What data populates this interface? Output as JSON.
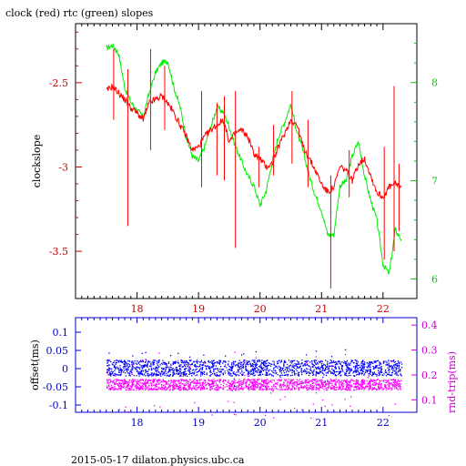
{
  "figure": {
    "footer": "2015-05-17 dilaton.physics.ubc.ca"
  },
  "chart_data": [
    {
      "type": "line",
      "title": "clock (red) rtc (green) slopes",
      "ylabel": "clockslope",
      "y2label": "",
      "x_ticks": [
        "18",
        "19",
        "20",
        "21",
        "22"
      ],
      "xlim": [
        17.0,
        22.55
      ],
      "ylim": [
        -3.78,
        -2.15
      ],
      "y2lim": [
        5.8,
        8.6
      ],
      "y_ticks": [
        "-2.5",
        "-3",
        "-3.5"
      ],
      "y2_ticks": [
        "6",
        "7",
        "8"
      ],
      "series": [
        {
          "color": "#ff0000",
          "axis": "left",
          "x": [
            17.5,
            17.6,
            17.7,
            17.8,
            17.9,
            18.0,
            18.1,
            18.2,
            18.3,
            18.4,
            18.5,
            18.6,
            18.7,
            18.8,
            18.9,
            19.0,
            19.1,
            19.2,
            19.3,
            19.4,
            19.5,
            19.6,
            19.7,
            19.8,
            19.9,
            20.0,
            20.1,
            20.2,
            20.3,
            20.4,
            20.5,
            20.6,
            20.7,
            20.8,
            20.9,
            21.0,
            21.1,
            21.2,
            21.3,
            21.4,
            21.5,
            21.6,
            21.7,
            21.8,
            21.9,
            22.0,
            22.1,
            22.2,
            22.3
          ],
          "y": [
            -2.55,
            -2.52,
            -2.56,
            -2.6,
            -2.65,
            -2.68,
            -2.72,
            -2.62,
            -2.6,
            -2.58,
            -2.62,
            -2.68,
            -2.75,
            -2.82,
            -2.9,
            -2.88,
            -2.82,
            -2.78,
            -2.75,
            -2.72,
            -2.85,
            -2.8,
            -2.78,
            -2.82,
            -2.92,
            -2.95,
            -3.0,
            -2.98,
            -2.88,
            -2.8,
            -2.72,
            -2.75,
            -2.88,
            -2.95,
            -3.02,
            -3.1,
            -3.15,
            -3.12,
            -3.0,
            -3.02,
            -3.08,
            -2.98,
            -2.95,
            -3.05,
            -3.15,
            -3.18,
            -3.12,
            -3.1,
            -3.12
          ],
          "spikes": [
            {
              "x": 17.62,
              "top": -2.3,
              "bottom": -2.72
            },
            {
              "x": 17.85,
              "top": -2.42,
              "bottom": -3.35
            },
            {
              "x": 18.22,
              "top": -2.3,
              "bottom": -2.9
            },
            {
              "x": 18.45,
              "top": -2.4,
              "bottom": -2.78
            },
            {
              "x": 19.05,
              "top": -2.55,
              "bottom": -3.12
            },
            {
              "x": 19.3,
              "top": -2.62,
              "bottom": -3.05
            },
            {
              "x": 19.42,
              "top": -2.58,
              "bottom": -3.08
            },
            {
              "x": 19.6,
              "top": -2.55,
              "bottom": -3.48
            },
            {
              "x": 19.98,
              "top": -2.88,
              "bottom": -3.12
            },
            {
              "x": 20.22,
              "top": -2.75,
              "bottom": -3.05
            },
            {
              "x": 20.52,
              "top": -2.55,
              "bottom": -2.98
            },
            {
              "x": 20.78,
              "top": -2.72,
              "bottom": -3.12
            },
            {
              "x": 21.15,
              "top": -3.05,
              "bottom": -3.72
            },
            {
              "x": 21.45,
              "top": -2.9,
              "bottom": -3.18
            },
            {
              "x": 22.02,
              "top": -2.88,
              "bottom": -3.55
            },
            {
              "x": 22.18,
              "top": -2.52,
              "bottom": -3.5
            },
            {
              "x": 22.26,
              "top": -2.98,
              "bottom": -3.38
            }
          ]
        },
        {
          "color": "#00ee00",
          "axis": "right",
          "x": [
            17.5,
            17.6,
            17.7,
            17.8,
            17.9,
            18.0,
            18.1,
            18.2,
            18.3,
            18.4,
            18.5,
            18.6,
            18.7,
            18.8,
            18.9,
            19.0,
            19.1,
            19.2,
            19.3,
            19.4,
            19.5,
            19.6,
            19.7,
            19.8,
            19.9,
            20.0,
            20.1,
            20.2,
            20.3,
            20.4,
            20.5,
            20.6,
            20.7,
            20.8,
            20.9,
            21.0,
            21.1,
            21.2,
            21.3,
            21.4,
            21.5,
            21.6,
            21.7,
            21.8,
            21.9,
            22.0,
            22.1,
            22.2,
            22.3
          ],
          "y": [
            8.35,
            8.38,
            8.3,
            7.95,
            7.8,
            7.72,
            7.65,
            7.9,
            8.1,
            8.2,
            8.22,
            7.95,
            7.75,
            7.45,
            7.25,
            7.2,
            7.35,
            7.55,
            7.75,
            7.7,
            7.55,
            7.35,
            7.2,
            7.05,
            6.95,
            6.75,
            6.9,
            7.2,
            7.45,
            7.6,
            7.78,
            7.5,
            7.3,
            7.05,
            6.85,
            6.7,
            6.45,
            6.45,
            6.95,
            7.0,
            7.25,
            7.4,
            7.05,
            6.8,
            6.6,
            6.15,
            6.05,
            6.5,
            6.4
          ],
          "spikes": []
        }
      ]
    },
    {
      "type": "scatter",
      "ylabel": "offset(ms)",
      "y2label": "rnd-trip(ms)",
      "x_ticks": [
        "18",
        "19",
        "20",
        "21",
        "22"
      ],
      "xlim": [
        17.0,
        22.55
      ],
      "ylim": [
        -0.12,
        0.14
      ],
      "y2lim": [
        0.05,
        0.43
      ],
      "y_ticks": [
        "0.1",
        "0.05",
        "0",
        "-0.05",
        "-0.1"
      ],
      "y2_ticks": [
        "0.4",
        "0.3",
        "0.2",
        "0.1"
      ],
      "series": [
        {
          "color": "#0000ff",
          "axis": "left",
          "band_center": 0.003,
          "band_halfwidth": 0.022,
          "outlier_max": 0.06
        },
        {
          "color": "#ff00ff",
          "axis": "right",
          "band_center": 0.163,
          "band_halfwidth": 0.022,
          "outlier_max": 0.3
        }
      ]
    }
  ]
}
